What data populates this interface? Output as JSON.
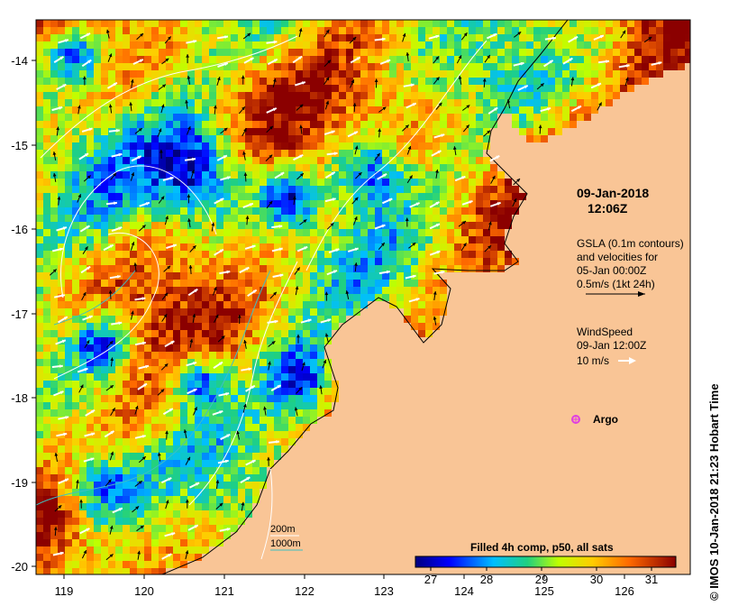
{
  "map": {
    "x_ticks": [
      "119",
      "120",
      "121",
      "122",
      "123",
      "124",
      "125",
      "126"
    ],
    "y_ticks": [
      "-14",
      "-15",
      "-16",
      "-17",
      "-18",
      "-19",
      "-20"
    ],
    "land_color": "#f9c596",
    "coast_color": "#000000"
  },
  "annotations": {
    "date": "09-Jan-2018",
    "time": "12:06Z",
    "gsla_line1": "GSLA (0.1m contours)",
    "gsla_line2": "and velocities for",
    "gsla_line3": "05-Jan 00:00Z",
    "gsla_line4": "0.5m/s (1kt 24h)",
    "wind_line1": "WindSpeed",
    "wind_line2": "09-Jan 12:00Z",
    "wind_scale": "10 m/s",
    "argo_label": "Argo",
    "argo_icon": "argo-float-marker",
    "argo_color": "#e040e0"
  },
  "contour_legend": {
    "line1": "200m",
    "line2": "1000m",
    "line1_color": "#ffffff",
    "line2_color": "#40c0c0"
  },
  "colorbar": {
    "title": "Filled 4h comp, p50, all sats",
    "ticks": [
      "27",
      "28",
      "29",
      "30",
      "31"
    ]
  },
  "credit": "© IMOS 10-Jan-2018 21:23 Hobart Time"
}
